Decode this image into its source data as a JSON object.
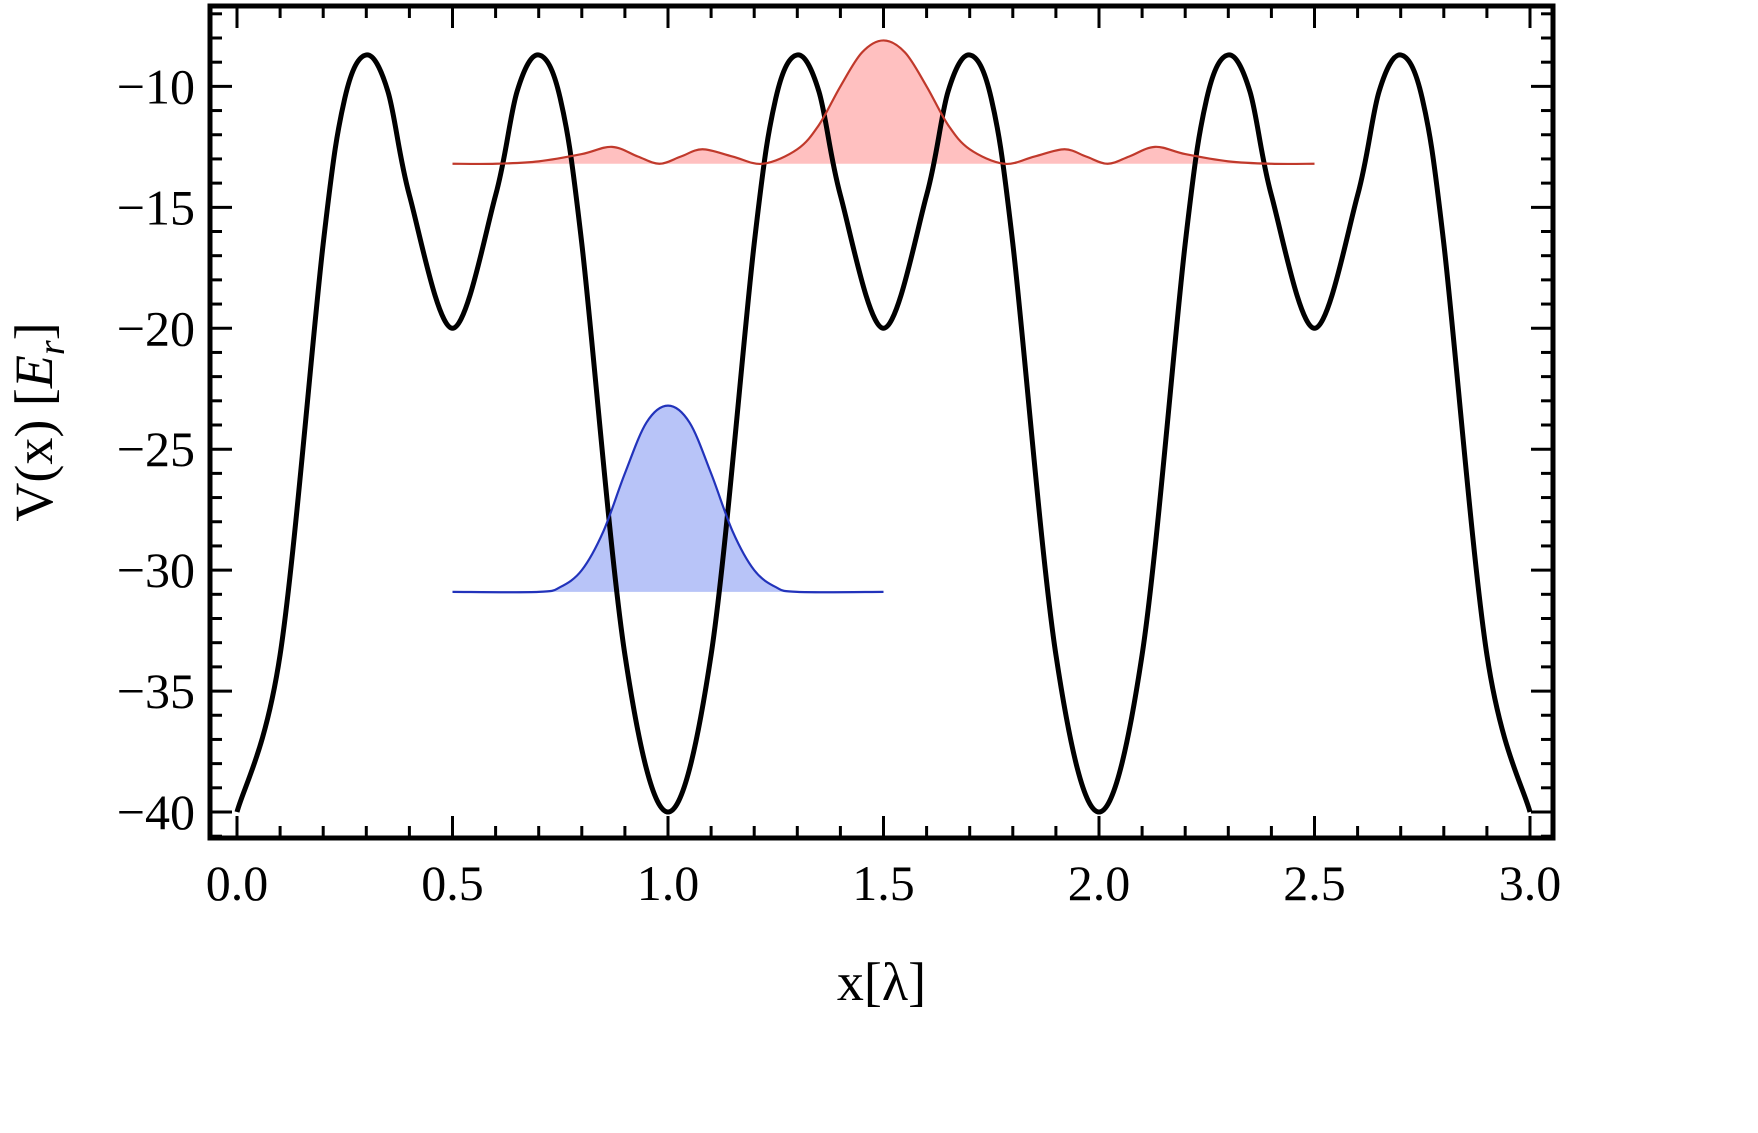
{
  "chart_data": {
    "type": "line",
    "xlabel": "x[λ]",
    "ylabel": "V(x) [E_r]",
    "ylabel_parts": {
      "prefix": "V(x) [",
      "var": "E",
      "sub": "r",
      "suffix": "]"
    },
    "xlim": [
      0.0,
      3.0
    ],
    "ylim": [
      -41,
      -7
    ],
    "x_ticks": [
      0.0,
      0.5,
      1.0,
      1.5,
      2.0,
      2.5,
      3.0
    ],
    "x_tick_labels": [
      "0.0",
      "0.5",
      "1.0",
      "1.5",
      "2.0",
      "2.5",
      "3.0"
    ],
    "y_ticks": [
      -10,
      -15,
      -20,
      -25,
      -30,
      -35,
      -40
    ],
    "y_tick_labels": [
      "−10",
      "−15",
      "−20",
      "−25",
      "−30",
      "−35",
      "−40"
    ],
    "x_minor_step": 0.1,
    "y_minor_step": 1,
    "grid": false,
    "series": [
      {
        "kind": "potential",
        "color": "#000000",
        "x": [
          0.0,
          0.1,
          0.2,
          0.25,
          0.3,
          0.35,
          0.4,
          0.5,
          0.6,
          0.65,
          0.7,
          0.75,
          0.8,
          0.9,
          1.0,
          1.1,
          1.2,
          1.25,
          1.3,
          1.35,
          1.4,
          1.5,
          1.6,
          1.65,
          1.7,
          1.75,
          1.8,
          1.9,
          2.0,
          2.1,
          2.2,
          2.25,
          2.3,
          2.35,
          2.4,
          2.5,
          2.6,
          2.65,
          2.7,
          2.75,
          2.8,
          2.9,
          3.0
        ],
        "y": [
          -40,
          -33.5,
          -16.5,
          -10.5,
          -8.7,
          -10.2,
          -14.5,
          -20,
          -14.5,
          -10.2,
          -8.7,
          -10.5,
          -16.5,
          -33.5,
          -40,
          -33.5,
          -16.5,
          -10.5,
          -8.7,
          -10.2,
          -14.5,
          -20,
          -14.5,
          -10.2,
          -8.7,
          -10.5,
          -16.5,
          -33.5,
          -40,
          -33.5,
          -16.5,
          -10.5,
          -8.7,
          -10.2,
          -14.5,
          -20,
          -14.5,
          -10.2,
          -8.7,
          -10.5,
          -16.5,
          -33.5,
          -40
        ]
      },
      {
        "kind": "wavefunction",
        "color": "#2233bb",
        "fill": "#b8c4f8",
        "x": [
          0.5,
          0.7,
          0.75,
          0.8,
          0.85,
          0.9,
          0.95,
          1.0,
          1.05,
          1.1,
          1.15,
          1.2,
          1.25,
          1.3,
          1.5
        ],
        "y": [
          -30.9,
          -30.9,
          -30.7,
          -30.0,
          -28.4,
          -26.0,
          -23.9,
          -23.2,
          -23.9,
          -26.0,
          -28.4,
          -30.0,
          -30.7,
          -30.9,
          -30.9
        ]
      },
      {
        "kind": "wavefunction",
        "color": "#c0392b",
        "fill": "#ffc0c0",
        "x": [
          0.5,
          0.6,
          0.7,
          0.8,
          0.87,
          0.93,
          0.98,
          1.03,
          1.08,
          1.15,
          1.22,
          1.3,
          1.35,
          1.4,
          1.45,
          1.5,
          1.55,
          1.6,
          1.65,
          1.7,
          1.78,
          1.85,
          1.92,
          1.97,
          2.02,
          2.07,
          2.13,
          2.2,
          2.3,
          2.4,
          2.5
        ],
        "y": [
          -13.2,
          -13.2,
          -13.1,
          -12.8,
          -12.5,
          -12.9,
          -13.2,
          -12.9,
          -12.6,
          -12.9,
          -13.2,
          -12.6,
          -11.6,
          -10.0,
          -8.6,
          -8.1,
          -8.6,
          -10.0,
          -11.6,
          -12.6,
          -13.2,
          -12.9,
          -12.6,
          -12.9,
          -13.2,
          -12.9,
          -12.5,
          -12.8,
          -13.1,
          -13.2,
          -13.2
        ]
      }
    ]
  }
}
